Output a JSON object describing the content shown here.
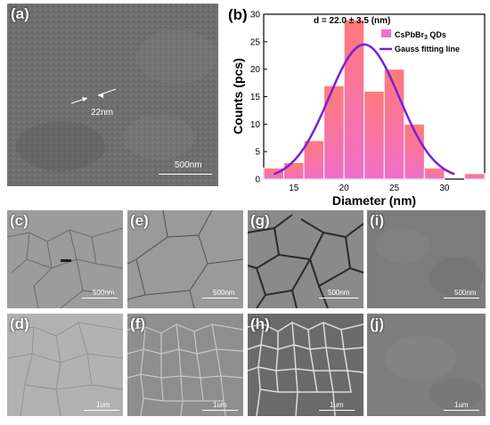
{
  "panels": [
    {
      "label": "(a)",
      "scale": "500nm",
      "annotation": "22nm"
    },
    {
      "label": "(b)"
    },
    {
      "label": "(c)",
      "scale": "500nm"
    },
    {
      "label": "(e)",
      "scale": "500nm"
    },
    {
      "label": "(g)",
      "scale": "500nm"
    },
    {
      "label": "(i)",
      "scale": "500nm"
    },
    {
      "label": "(d)",
      "scale": "1um"
    },
    {
      "label": "(f)",
      "scale": "1um"
    },
    {
      "label": "(h)",
      "scale": "1um"
    },
    {
      "label": "(j)",
      "scale": "1um"
    }
  ],
  "chart_data": {
    "type": "bar",
    "annotation": "d = 22.0 ± 3.5 (nm)",
    "xlabel": "Diameter (nm)",
    "ylabel": "Counts (pcs)",
    "xlim": [
      12,
      34
    ],
    "ylim": [
      0,
      30
    ],
    "xticks": [
      15,
      20,
      25,
      30
    ],
    "yticks": [
      0,
      5,
      10,
      15,
      20,
      25,
      30
    ],
    "bar_width": 2,
    "x": [
      13,
      15,
      17,
      19,
      21,
      23,
      25,
      27,
      29,
      31,
      33
    ],
    "values": [
      2,
      3,
      7,
      17,
      29,
      16,
      20,
      10,
      2,
      0,
      1
    ],
    "curve": {
      "mean": 22.0,
      "sigma": 3.5,
      "peak": 24.5
    },
    "legend_position": "top-right",
    "series": [
      {
        "name": "CsPbBr3 QDs",
        "color": "#f06ec8"
      },
      {
        "name": "Gauss fitting line",
        "color": "#7b1fd6"
      }
    ]
  }
}
